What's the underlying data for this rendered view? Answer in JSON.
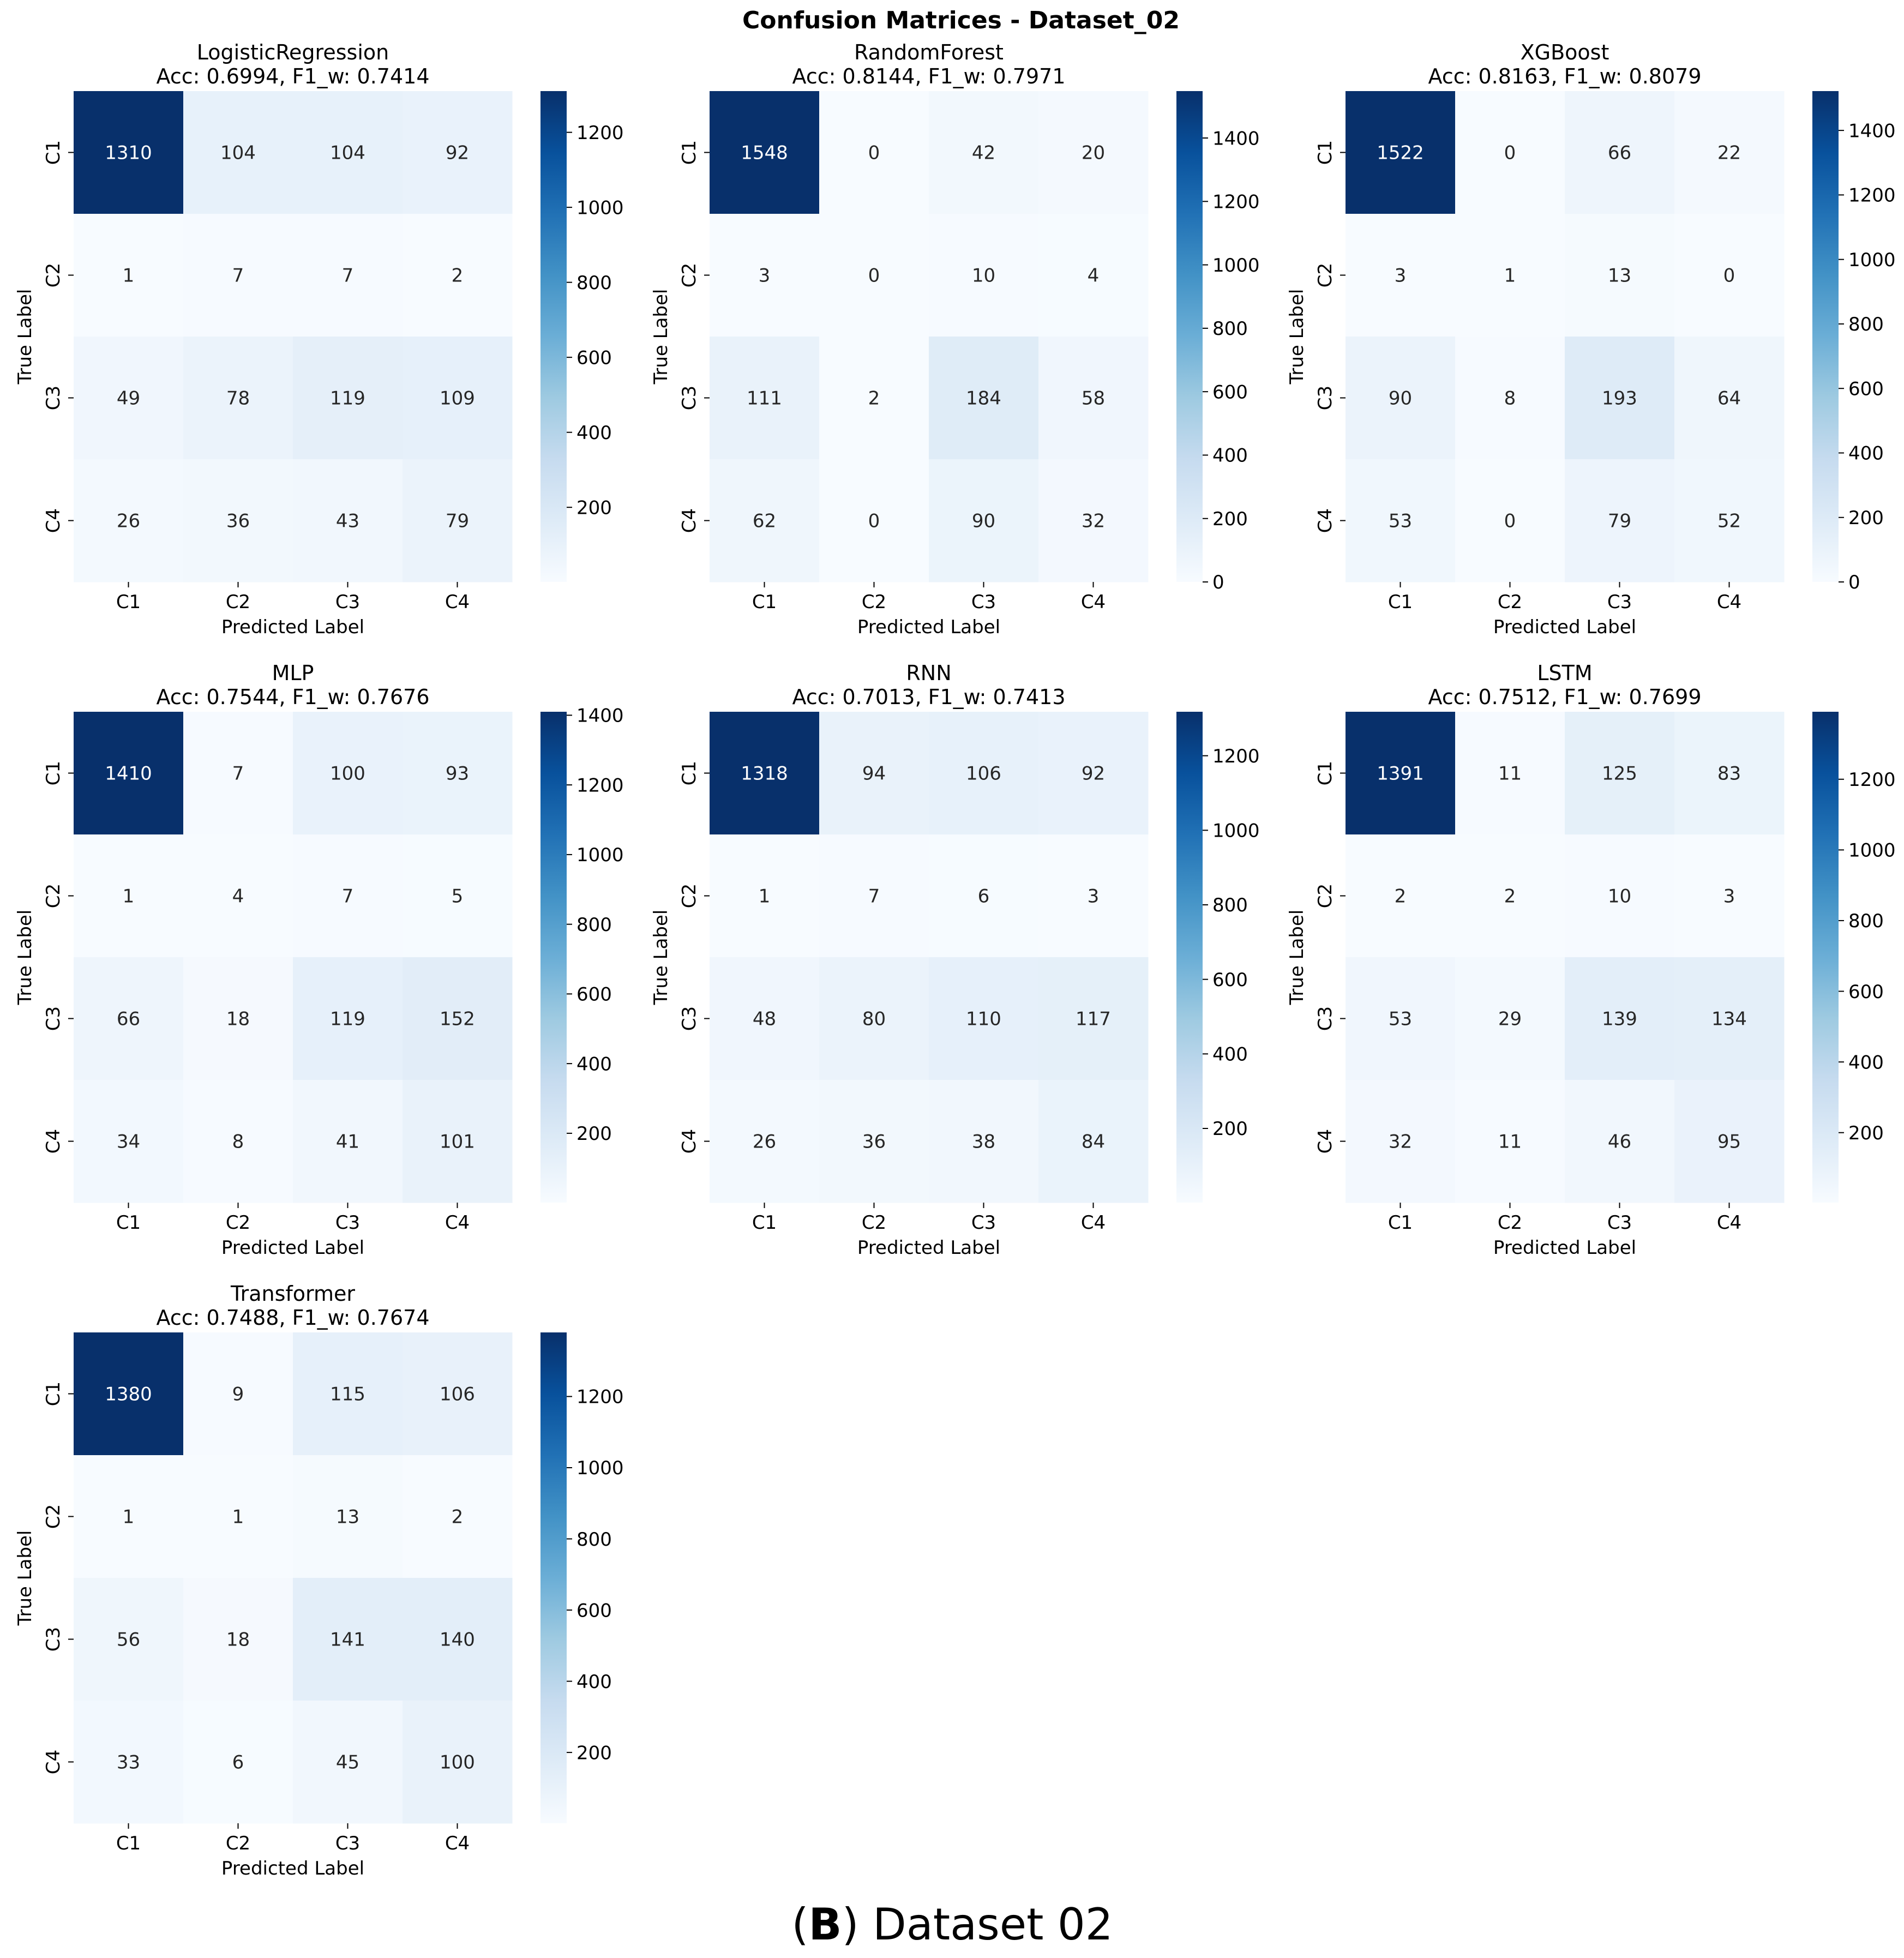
{
  "figure": {
    "suptitle": "Confusion Matrices - Dataset_02",
    "caption_letter": "B",
    "caption_rest": " Dataset 02",
    "caption_open": "(",
    "caption_close": ")"
  },
  "colormap": {
    "name": "Blues",
    "stops": [
      "#f7fbff",
      "#deebf7",
      "#c6dbef",
      "#9ecae1",
      "#6baed6",
      "#4292c6",
      "#2171b5",
      "#08519c",
      "#08306b"
    ]
  },
  "chart_data": [
    {
      "type": "heatmap",
      "title": "LogisticRegression",
      "subtitle": "Acc: 0.6994, F1_w: 0.7414",
      "xlabel": "Predicted Label",
      "ylabel": "True Label",
      "x_categories": [
        "C1",
        "C2",
        "C3",
        "C4"
      ],
      "y_categories": [
        "C1",
        "C2",
        "C3",
        "C4"
      ],
      "values": [
        [
          1310,
          104,
          104,
          92
        ],
        [
          1,
          7,
          7,
          2
        ],
        [
          49,
          78,
          119,
          109
        ],
        [
          26,
          36,
          43,
          79
        ]
      ],
      "colorbar_ticks": [
        200,
        400,
        600,
        800,
        1000,
        1200
      ]
    },
    {
      "type": "heatmap",
      "title": "RandomForest",
      "subtitle": "Acc: 0.8144, F1_w: 0.7971",
      "xlabel": "Predicted Label",
      "ylabel": "True Label",
      "x_categories": [
        "C1",
        "C2",
        "C3",
        "C4"
      ],
      "y_categories": [
        "C1",
        "C2",
        "C3",
        "C4"
      ],
      "values": [
        [
          1548,
          0,
          42,
          20
        ],
        [
          3,
          0,
          10,
          4
        ],
        [
          111,
          2,
          184,
          58
        ],
        [
          62,
          0,
          90,
          32
        ]
      ],
      "colorbar_ticks": [
        0,
        200,
        400,
        600,
        800,
        1000,
        1200,
        1400
      ]
    },
    {
      "type": "heatmap",
      "title": "XGBoost",
      "subtitle": "Acc: 0.8163, F1_w: 0.8079",
      "xlabel": "Predicted Label",
      "ylabel": "True Label",
      "x_categories": [
        "C1",
        "C2",
        "C3",
        "C4"
      ],
      "y_categories": [
        "C1",
        "C2",
        "C3",
        "C4"
      ],
      "values": [
        [
          1522,
          0,
          66,
          22
        ],
        [
          3,
          1,
          13,
          0
        ],
        [
          90,
          8,
          193,
          64
        ],
        [
          53,
          0,
          79,
          52
        ]
      ],
      "colorbar_ticks": [
        0,
        200,
        400,
        600,
        800,
        1000,
        1200,
        1400
      ]
    },
    {
      "type": "heatmap",
      "title": "MLP",
      "subtitle": "Acc: 0.7544, F1_w: 0.7676",
      "xlabel": "Predicted Label",
      "ylabel": "True Label",
      "x_categories": [
        "C1",
        "C2",
        "C3",
        "C4"
      ],
      "y_categories": [
        "C1",
        "C2",
        "C3",
        "C4"
      ],
      "values": [
        [
          1410,
          7,
          100,
          93
        ],
        [
          1,
          4,
          7,
          5
        ],
        [
          66,
          18,
          119,
          152
        ],
        [
          34,
          8,
          41,
          101
        ]
      ],
      "colorbar_ticks": [
        200,
        400,
        600,
        800,
        1000,
        1200,
        1400
      ]
    },
    {
      "type": "heatmap",
      "title": "RNN",
      "subtitle": "Acc: 0.7013, F1_w: 0.7413",
      "xlabel": "Predicted Label",
      "ylabel": "True Label",
      "x_categories": [
        "C1",
        "C2",
        "C3",
        "C4"
      ],
      "y_categories": [
        "C1",
        "C2",
        "C3",
        "C4"
      ],
      "values": [
        [
          1318,
          94,
          106,
          92
        ],
        [
          1,
          7,
          6,
          3
        ],
        [
          48,
          80,
          110,
          117
        ],
        [
          26,
          36,
          38,
          84
        ]
      ],
      "colorbar_ticks": [
        200,
        400,
        600,
        800,
        1000,
        1200
      ]
    },
    {
      "type": "heatmap",
      "title": "LSTM",
      "subtitle": "Acc: 0.7512, F1_w: 0.7699",
      "xlabel": "Predicted Label",
      "ylabel": "True Label",
      "x_categories": [
        "C1",
        "C2",
        "C3",
        "C4"
      ],
      "y_categories": [
        "C1",
        "C2",
        "C3",
        "C4"
      ],
      "values": [
        [
          1391,
          11,
          125,
          83
        ],
        [
          2,
          2,
          10,
          3
        ],
        [
          53,
          29,
          139,
          134
        ],
        [
          32,
          11,
          46,
          95
        ]
      ],
      "colorbar_ticks": [
        200,
        400,
        600,
        800,
        1000,
        1200
      ]
    },
    {
      "type": "heatmap",
      "title": "Transformer",
      "subtitle": "Acc: 0.7488, F1_w: 0.7674",
      "xlabel": "Predicted Label",
      "ylabel": "True Label",
      "x_categories": [
        "C1",
        "C2",
        "C3",
        "C4"
      ],
      "y_categories": [
        "C1",
        "C2",
        "C3",
        "C4"
      ],
      "values": [
        [
          1380,
          9,
          115,
          106
        ],
        [
          1,
          1,
          13,
          2
        ],
        [
          56,
          18,
          141,
          140
        ],
        [
          33,
          6,
          45,
          100
        ]
      ],
      "colorbar_ticks": [
        200,
        400,
        600,
        800,
        1000,
        1200
      ]
    }
  ]
}
